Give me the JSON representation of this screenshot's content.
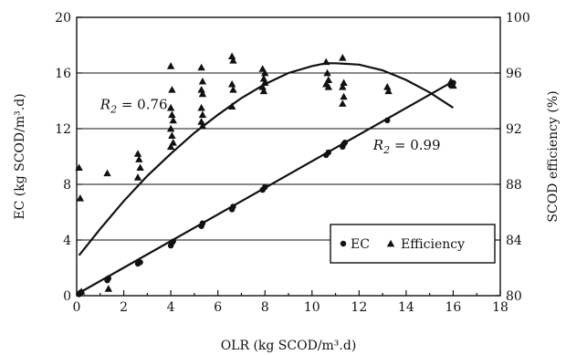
{
  "chart_data": {
    "type": "scatter",
    "xlabel": "OLR (kg SCOD/m³.d)",
    "ylabel_left": "EC (kg SCOD/m³.d)",
    "ylabel_right": "SCOD efficiency (%)",
    "xlim": [
      0,
      18
    ],
    "ylim_left": [
      0,
      20
    ],
    "ylim_right": [
      80,
      100
    ],
    "x_ticks": [
      "0",
      "2",
      "4",
      "6",
      "8",
      "10",
      "12",
      "14",
      "16",
      "18"
    ],
    "y_left_ticks": [
      "0",
      "4",
      "8",
      "12",
      "16",
      "20"
    ],
    "y_right_ticks": [
      "80",
      "84",
      "88",
      "92",
      "96",
      "100"
    ],
    "grid": "horizontal",
    "legend_position": "lower-right",
    "series": [
      {
        "name": "EC",
        "marker": "circle",
        "axis": "left",
        "points": [
          [
            0.1,
            0.1
          ],
          [
            0.15,
            0.2
          ],
          [
            0.2,
            0.25
          ],
          [
            1.3,
            1.1
          ],
          [
            1.35,
            1.25
          ],
          [
            2.6,
            2.3
          ],
          [
            2.7,
            2.4
          ],
          [
            4.0,
            3.6
          ],
          [
            4.05,
            3.8
          ],
          [
            4.1,
            3.9
          ],
          [
            5.3,
            5.0
          ],
          [
            5.35,
            5.2
          ],
          [
            6.6,
            6.2
          ],
          [
            6.65,
            6.4
          ],
          [
            7.9,
            7.6
          ],
          [
            8.0,
            7.8
          ],
          [
            10.6,
            10.1
          ],
          [
            10.7,
            10.3
          ],
          [
            11.3,
            10.7
          ],
          [
            11.35,
            10.9
          ],
          [
            11.4,
            11.0
          ],
          [
            13.2,
            12.6
          ],
          [
            15.9,
            15.1
          ],
          [
            16.0,
            15.3
          ]
        ]
      },
      {
        "name": "Efficiency",
        "marker": "triangle",
        "axis": "right",
        "points": [
          [
            0.1,
            89.2
          ],
          [
            0.15,
            87.0
          ],
          [
            0.2,
            80.3
          ],
          [
            1.3,
            88.8
          ],
          [
            1.35,
            80.5
          ],
          [
            2.6,
            90.2
          ],
          [
            2.65,
            89.8
          ],
          [
            2.7,
            89.2
          ],
          [
            2.6,
            88.5
          ],
          [
            4.0,
            96.5
          ],
          [
            4.05,
            94.8
          ],
          [
            4.0,
            93.5
          ],
          [
            4.05,
            93.0
          ],
          [
            4.1,
            92.6
          ],
          [
            4.0,
            92.0
          ],
          [
            4.05,
            91.5
          ],
          [
            4.1,
            91.0
          ],
          [
            4.0,
            90.7
          ],
          [
            5.3,
            96.4
          ],
          [
            5.35,
            95.4
          ],
          [
            5.3,
            94.8
          ],
          [
            5.35,
            94.5
          ],
          [
            5.3,
            93.5
          ],
          [
            5.35,
            93.0
          ],
          [
            5.3,
            92.5
          ],
          [
            5.35,
            92.2
          ],
          [
            6.6,
            97.2
          ],
          [
            6.65,
            96.9
          ],
          [
            6.6,
            95.2
          ],
          [
            6.65,
            94.8
          ],
          [
            6.6,
            93.6
          ],
          [
            7.9,
            96.3
          ],
          [
            8.0,
            96.0
          ],
          [
            7.95,
            95.6
          ],
          [
            8.0,
            95.3
          ],
          [
            7.9,
            95.0
          ],
          [
            7.95,
            94.7
          ],
          [
            10.6,
            96.8
          ],
          [
            10.65,
            96.0
          ],
          [
            10.7,
            95.5
          ],
          [
            10.6,
            95.2
          ],
          [
            10.7,
            95.0
          ],
          [
            11.3,
            97.1
          ],
          [
            11.35,
            95.3
          ],
          [
            11.3,
            95.0
          ],
          [
            11.35,
            94.3
          ],
          [
            11.3,
            93.8
          ],
          [
            13.2,
            95.0
          ],
          [
            13.25,
            94.7
          ],
          [
            15.9,
            95.4
          ],
          [
            16.0,
            95.1
          ]
        ]
      }
    ],
    "fits": [
      {
        "label": "R2 = 0.76",
        "kind": "quadratic",
        "axis": "left",
        "x_range": [
          0.1,
          16.0
        ],
        "points": [
          [
            0.1,
            2.9
          ],
          [
            1,
            4.8
          ],
          [
            2,
            6.8
          ],
          [
            3,
            8.6
          ],
          [
            4,
            10.2
          ],
          [
            5,
            11.7
          ],
          [
            6,
            13.0
          ],
          [
            7,
            14.2
          ],
          [
            8,
            15.2
          ],
          [
            9,
            16.0
          ],
          [
            10,
            16.5
          ],
          [
            10.6,
            16.7
          ],
          [
            11,
            16.7
          ],
          [
            12,
            16.6
          ],
          [
            13,
            16.2
          ],
          [
            14,
            15.5
          ],
          [
            15,
            14.6
          ],
          [
            16,
            13.5
          ]
        ],
        "label_anchor": [
          1.0,
          13.4
        ]
      },
      {
        "label": "R2 = 0.99",
        "kind": "linear",
        "axis": "left",
        "x_range": [
          0,
          16.0
        ],
        "points": [
          [
            0,
            0.1
          ],
          [
            16.0,
            15.4
          ]
        ],
        "label_anchor": [
          12.6,
          10.5
        ]
      }
    ],
    "legend": {
      "items": [
        "EC",
        "Efficiency"
      ],
      "markers": [
        "circle",
        "triangle"
      ]
    },
    "r2_labels": [
      {
        "prefix": "R",
        "sub": "2",
        "suffix": " = 0.76"
      },
      {
        "prefix": "R",
        "sub": "2",
        "suffix": " = 0.99"
      }
    ]
  }
}
